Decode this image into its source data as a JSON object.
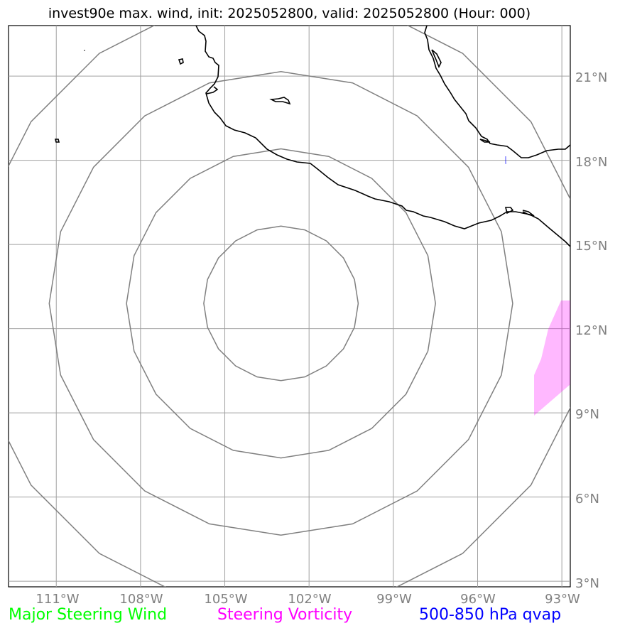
{
  "title": "invest90e max. wind, init: 2025052800, valid: 2025052800 (Hour: 000)",
  "map": {
    "extent_lon": [
      -112.7,
      -92.7
    ],
    "extent_lat": [
      2.8,
      22.8
    ],
    "lat_labels": [
      "21°N",
      "18°N",
      "15°N",
      "12°N",
      "9°N",
      "6°N",
      "3°N"
    ],
    "lat_values": [
      21,
      18,
      15,
      12,
      9,
      6,
      3
    ],
    "lon_labels": [
      "111°W",
      "108°W",
      "105°W",
      "102°W",
      "99°W",
      "96°W",
      "93°W"
    ],
    "lon_values": [
      -111,
      -108,
      -105,
      -102,
      -99,
      -96,
      -93
    ],
    "storm_center": {
      "lon": -103,
      "lat": 12.9
    },
    "range_rings_deg": [
      2.75,
      5.5,
      8.25,
      11
    ],
    "colors": {
      "coast": "#000000",
      "grid": "#a0a0a0",
      "rings": "#808080",
      "vorticity": "#ff00ff",
      "qvap": "#0000ff",
      "steering_wind": "#00ff00"
    }
  },
  "legend": {
    "wind": "Major Steering Wind",
    "vorticity": "Steering Vorticity",
    "qvap": "500-850 hPa qvap"
  }
}
